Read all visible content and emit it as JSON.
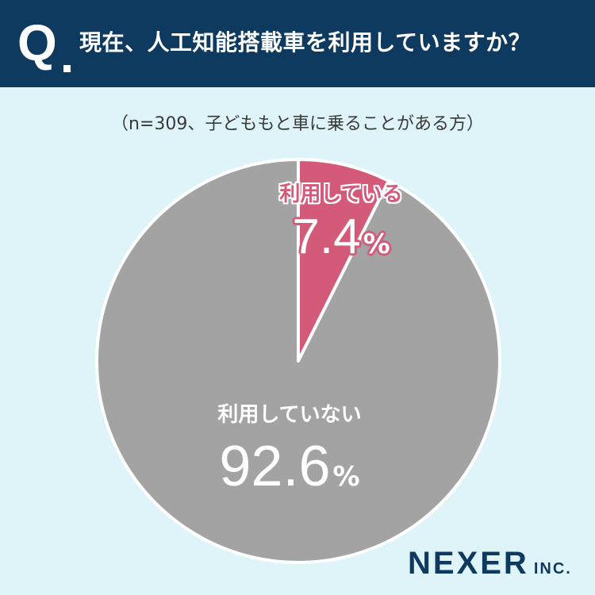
{
  "header": {
    "q_mark": "Q",
    "question": "現在、人工知能搭載車を利用していますか？",
    "background": "#0f3a5f"
  },
  "subtitle": "（n=309、子どももと車に乗ることがある方）",
  "chart_data": {
    "type": "pie",
    "slices": [
      {
        "label": "利用している",
        "value": 7.4,
        "value_text": "7.4",
        "color": "#d45a7a"
      },
      {
        "label": "利用していない",
        "value": 92.6,
        "value_text": "92.6",
        "color": "#a3a3a3"
      }
    ],
    "unit": "%",
    "start": "12 o'clock",
    "direction": "clockwise"
  },
  "logo": {
    "name": "NEXER",
    "suffix": "INC."
  }
}
